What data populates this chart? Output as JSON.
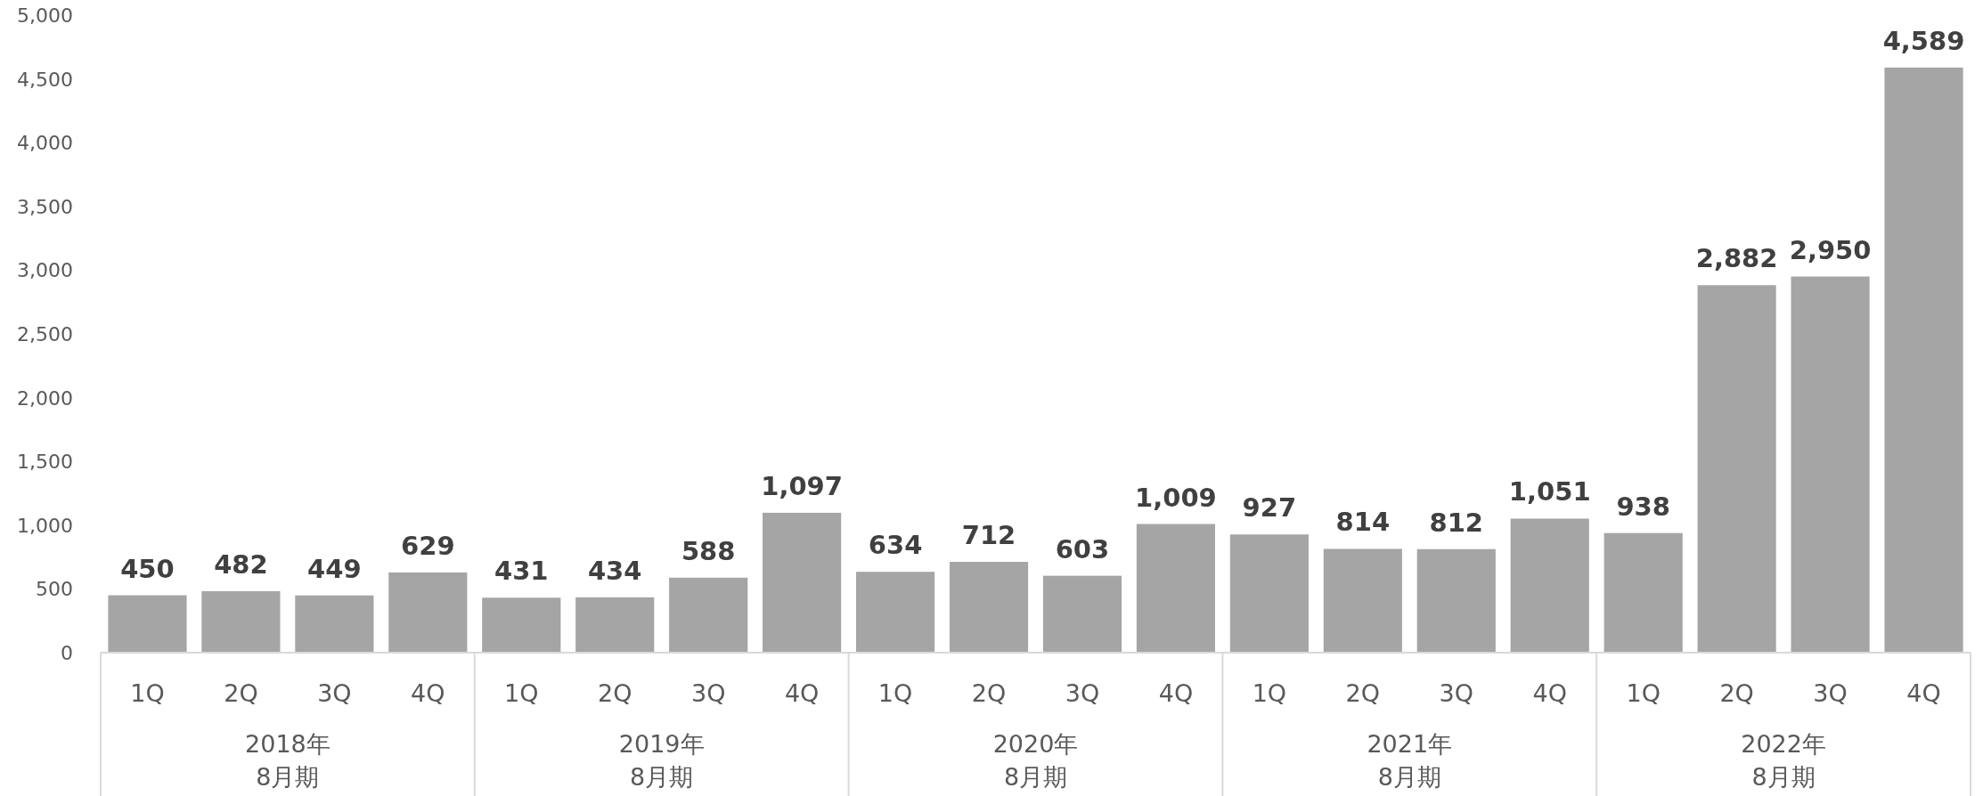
{
  "chart_data": {
    "type": "bar",
    "categories": [
      "1Q",
      "2Q",
      "3Q",
      "4Q",
      "1Q",
      "2Q",
      "3Q",
      "4Q",
      "1Q",
      "2Q",
      "3Q",
      "4Q",
      "1Q",
      "2Q",
      "3Q",
      "4Q",
      "1Q",
      "2Q",
      "3Q",
      "4Q"
    ],
    "values": [
      450,
      482,
      449,
      629,
      431,
      434,
      588,
      1097,
      634,
      712,
      603,
      1009,
      927,
      814,
      812,
      1051,
      938,
      2882,
      2950,
      4589
    ],
    "color": "#a5a5a5",
    "value_labels": [
      "450",
      "482",
      "449",
      "629",
      "431",
      "434",
      "588",
      "1,097",
      "634",
      "712",
      "603",
      "1,009",
      "927",
      "814",
      "812",
      "1,051",
      "938",
      "2,882",
      "2,950",
      "4,589"
    ],
    "ylim": [
      0,
      5000
    ],
    "yticks": [
      {
        "value": 0,
        "label": "0"
      },
      {
        "value": 500,
        "label": "500"
      },
      {
        "value": 1000,
        "label": "1,000"
      },
      {
        "value": 1500,
        "label": "1,500"
      },
      {
        "value": 2000,
        "label": "2,000"
      },
      {
        "value": 2500,
        "label": "2,500"
      },
      {
        "value": 3000,
        "label": "3,000"
      },
      {
        "value": 3500,
        "label": "3,500"
      },
      {
        "value": 4000,
        "label": "4,000"
      },
      {
        "value": 4500,
        "label": "4,500"
      },
      {
        "value": 5000,
        "label": "5,000"
      }
    ],
    "annotations": [
      "2018年 8月期",
      "2019年 8月期",
      "2020年 8月期",
      "2021年 8月期",
      "2022年 8月期"
    ]
  }
}
